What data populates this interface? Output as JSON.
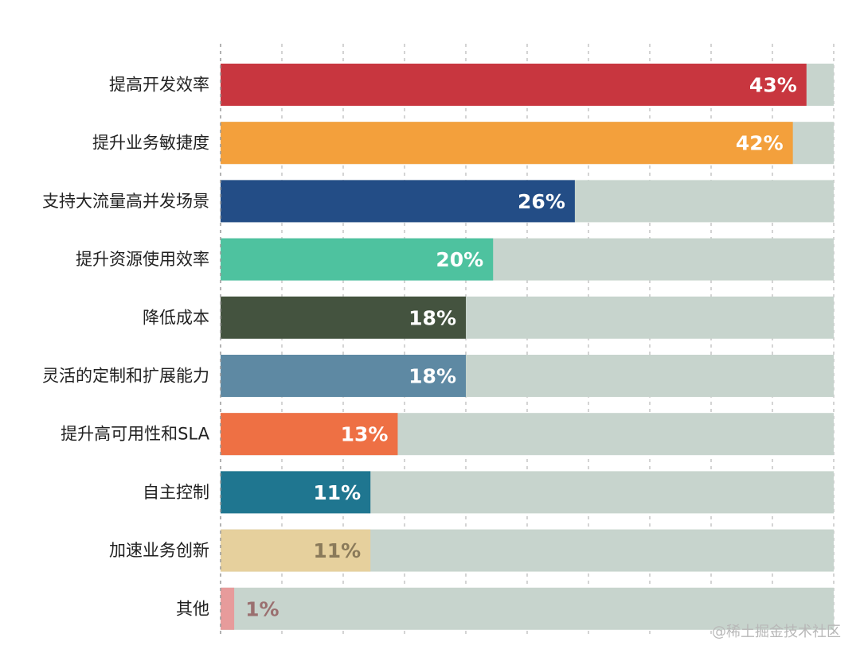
{
  "chart_data": {
    "type": "bar",
    "orientation": "horizontal",
    "categories": [
      "提高开发效率",
      "提升业务敏捷度",
      "支持大流量高并发场景",
      "提升资源使用效率",
      "降低成本",
      "灵活的定制和扩展能力",
      "提升高可用性和SLA",
      "自主控制",
      "加速业务创新",
      "其他"
    ],
    "values": [
      43,
      42,
      26,
      20,
      18,
      18,
      13,
      11,
      11,
      1
    ],
    "value_labels": [
      "43%",
      "42%",
      "26%",
      "20%",
      "18%",
      "18%",
      "13%",
      "11%",
      "11%",
      "1%"
    ],
    "colors": [
      "#c8363f",
      "#f3a03c",
      "#234d86",
      "#4ec29f",
      "#44533f",
      "#5e89a3",
      "#ee7044",
      "#1f7690",
      "#e6d09d",
      "#e79b9b"
    ],
    "value_label_colors": [
      "#ffffff",
      "#ffffff",
      "#ffffff",
      "#ffffff",
      "#ffffff",
      "#ffffff",
      "#ffffff",
      "#ffffff",
      "#8a7a5a",
      "#9a6f6f"
    ],
    "track_color": "#c7d4cd",
    "grid": true,
    "xlim": [
      0,
      45
    ],
    "title": "",
    "xlabel": "",
    "ylabel": ""
  },
  "watermark": "@稀土掘金技术社区"
}
